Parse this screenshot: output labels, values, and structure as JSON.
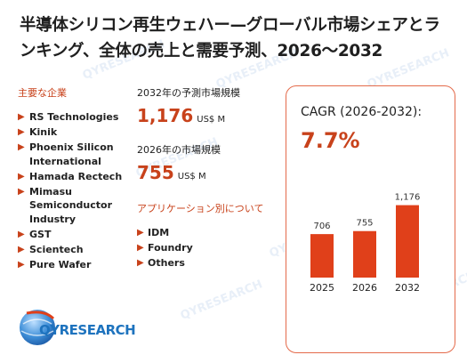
{
  "title": "半導体シリコン再生ウェハー—グローバル市場シェアとランキング、全体の売上と需要予測、2026～2032",
  "companies": {
    "label": "主要な企業",
    "items": [
      "RS Technologies",
      "Kinik",
      "Phoenix Silicon International",
      "Hamada Rectech",
      "Mimasu Semiconductor Industry",
      "GST",
      "Scientech",
      "Pure Wafer"
    ]
  },
  "metrics": {
    "m2032_label": "2032年の予測市場規模",
    "m2032_value": "1,176",
    "m2032_unit": "US$ M",
    "m2026_label": "2026年の市場規模",
    "m2026_value": "755",
    "m2026_unit": "US$ M"
  },
  "applications": {
    "label": "アプリケーション別について",
    "items": [
      "IDM",
      "Foundry",
      "Others"
    ]
  },
  "cagr": {
    "label": "CAGR (2026-2032):",
    "value": "7.7%"
  },
  "chart_data": {
    "type": "bar",
    "categories": [
      "2025",
      "2026",
      "2032"
    ],
    "values": [
      706,
      755,
      1176
    ],
    "data_labels": [
      "706",
      "755",
      "1,176"
    ],
    "ylim": [
      0,
      1300
    ],
    "grid": false,
    "bar_color": "#e0401a"
  },
  "brand": {
    "logo_text": "QYRESEARCH",
    "watermark_text": "QYRESEARCH"
  }
}
